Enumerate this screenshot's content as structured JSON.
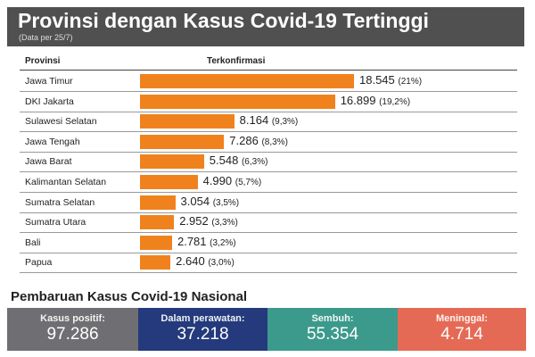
{
  "header": {
    "title": "Provinsi dengan Kasus Covid-19 Tertinggi",
    "subtitle": "(Data per 25/7)"
  },
  "chart_data": {
    "type": "bar",
    "orientation": "horizontal",
    "col_label": "Provinsi",
    "value_label": "Terkonfirmasi",
    "categories": [
      "Jawa Timur",
      "DKI Jakarta",
      "Sulawesi Selatan",
      "Jawa Tengah",
      "Jawa Barat",
      "Kalimantan Selatan",
      "Sumatra Selatan",
      "Sumatra Utara",
      "Bali",
      "Papua"
    ],
    "values": [
      18545,
      16899,
      8164,
      7286,
      5548,
      4990,
      3054,
      2952,
      2781,
      2640
    ],
    "value_text": [
      "18.545",
      "16.899",
      "8.164",
      "7.286",
      "5.548",
      "4.990",
      "3.054",
      "2.952",
      "2.781",
      "2.640"
    ],
    "percent_text": [
      "(21%)",
      "(19,2%)",
      "(9,3%)",
      "(8,3%)",
      "(6,3%)",
      "(5,7%)",
      "(3,5%)",
      "(3,3%)",
      "(3,2%)",
      "(3,0%)"
    ],
    "bar_color": "#f0821e"
  },
  "national": {
    "title": "Pembaruan Kasus Covid-19 Nasional",
    "items": [
      {
        "label": "Kasus positif:",
        "value": "97.286",
        "color": "#6f6f73"
      },
      {
        "label": "Dalam perawatan:",
        "value": "37.218",
        "color": "#243a7c"
      },
      {
        "label": "Sembuh:",
        "value": "55.354",
        "color": "#3b9a8b"
      },
      {
        "label": "Meninggal:",
        "value": "4.714",
        "color": "#e56a55"
      }
    ]
  }
}
